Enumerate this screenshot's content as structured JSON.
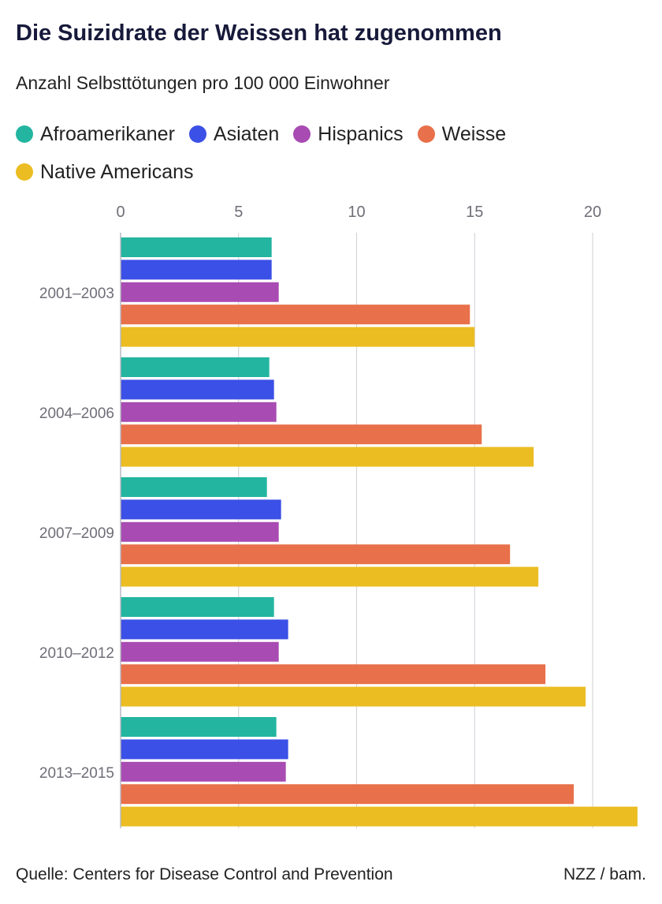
{
  "title": "Die Suizidrate der Weissen hat zugenommen",
  "subtitle": "Anzahl Selbsttötungen pro 100 000 Einwohner",
  "source": "Quelle: Centers for Disease Control and Prevention",
  "credit": "NZZ / bam.",
  "chart_data": {
    "type": "bar",
    "orientation": "horizontal",
    "title": "Die Suizidrate der Weissen hat zugenommen",
    "subtitle": "Anzahl Selbsttötungen pro 100 000 Einwohner",
    "xlabel": "",
    "ylabel": "",
    "xlim": [
      0,
      22
    ],
    "x_ticks": [
      0,
      5,
      10,
      15,
      20
    ],
    "grid": "vertical",
    "legend_position": "top",
    "categories": [
      "2001–2003",
      "2004–2006",
      "2007–2009",
      "2010–2012",
      "2013–2015"
    ],
    "series": [
      {
        "name": "Afroamerikaner",
        "color": "#23b5a0",
        "values": [
          6.4,
          6.3,
          6.2,
          6.5,
          6.6
        ]
      },
      {
        "name": "Asiaten",
        "color": "#3b50e6",
        "values": [
          6.4,
          6.5,
          6.8,
          7.1,
          7.1
        ]
      },
      {
        "name": "Hispanics",
        "color": "#a84bb2",
        "values": [
          6.7,
          6.6,
          6.7,
          6.7,
          7.0
        ]
      },
      {
        "name": "Weisse",
        "color": "#e8704a",
        "values": [
          14.8,
          15.3,
          16.5,
          18.0,
          19.2
        ]
      },
      {
        "name": "Native Americans",
        "color": "#ebbd22",
        "values": [
          15.0,
          17.5,
          17.7,
          19.7,
          21.9
        ]
      }
    ]
  }
}
